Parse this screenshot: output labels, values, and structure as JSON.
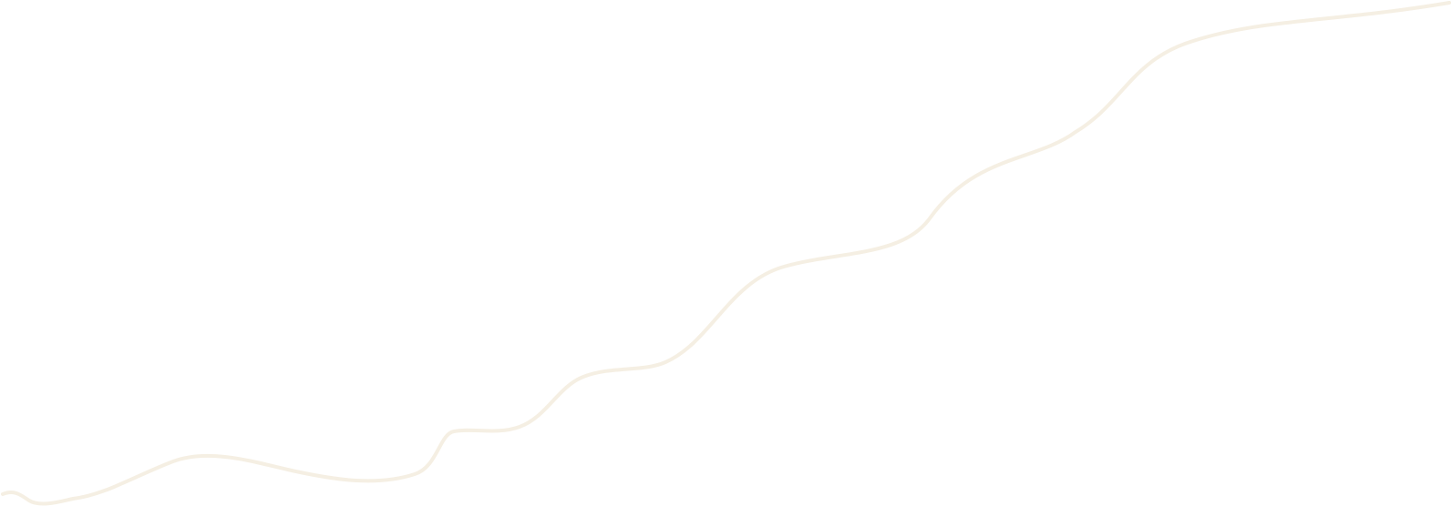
{
  "decoration": {
    "name": "wavy-line",
    "stroke_color": "#f5efe3"
  }
}
